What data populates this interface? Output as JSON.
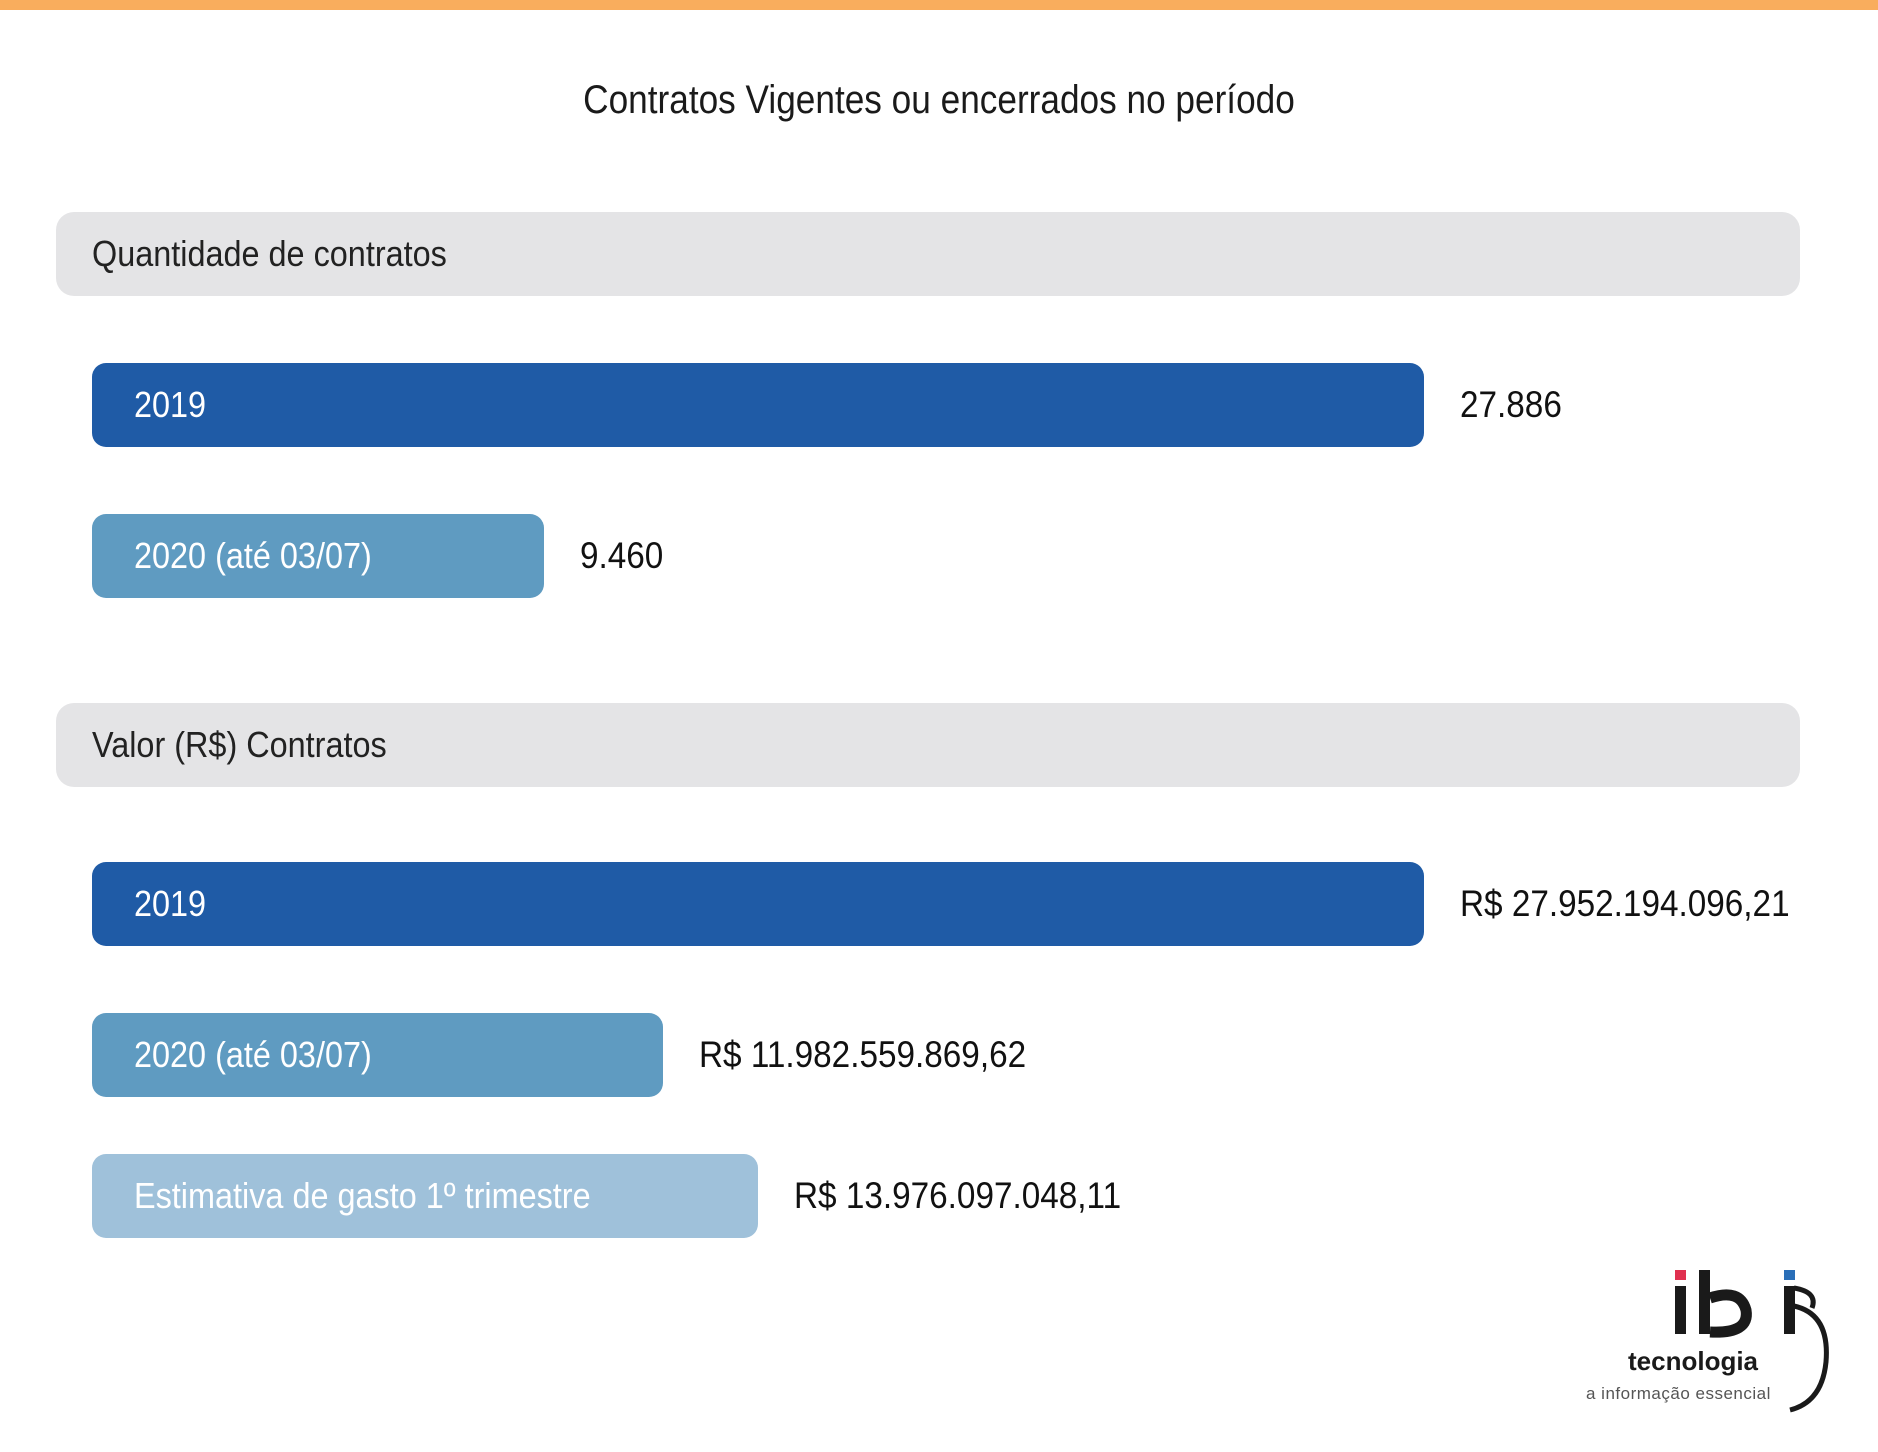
{
  "title": "Contratos Vigentes ou encerrados no período",
  "colors": {
    "accent_line": "#f9ad5d",
    "header_bg": "#e4e4e6",
    "bar_2019": "#1f5ba6",
    "bar_2020": "#5f9bc1",
    "bar_estimate": "#9fc1da"
  },
  "chart_data": [
    {
      "type": "bar",
      "orientation": "horizontal",
      "title": "Quantidade de contratos",
      "categories": [
        "2019",
        "2020 (até 03/07)"
      ],
      "values": [
        27886,
        9460
      ],
      "value_labels": [
        "27.886",
        "9.460"
      ],
      "bar_colors": [
        "#1f5ba6",
        "#5f9bc1"
      ],
      "grid": false
    },
    {
      "type": "bar",
      "orientation": "horizontal",
      "title": "Valor (R$) Contratos",
      "categories": [
        "2019",
        "2020 (até 03/07)",
        "Estimativa de gasto 1º trimestre"
      ],
      "values": [
        27952194096.21,
        11982559869.62,
        13976097048.11
      ],
      "value_labels": [
        "R$ 27.952.194.096,21",
        "R$ 11.982.559.869,62",
        "R$ 13.976.097.048,11"
      ],
      "bar_colors": [
        "#1f5ba6",
        "#5f9bc1",
        "#9fc1da"
      ],
      "grid": false
    }
  ],
  "logo": {
    "brand": "ibi",
    "name": "tecnologia",
    "tagline": "a informação essencial",
    "dot_colors": [
      "#e0304f",
      "#2a6fb8"
    ]
  }
}
